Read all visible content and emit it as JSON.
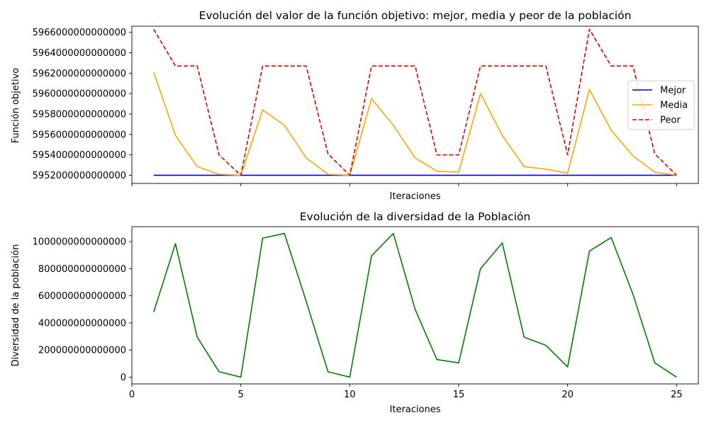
{
  "chart_data": [
    {
      "type": "line",
      "title": "Evolución del valor de la función objetivo: mejor, media y peor de la población",
      "xlabel": "Iteraciones",
      "ylabel": "Función objetivo",
      "x": [
        1,
        2,
        3,
        4,
        5,
        6,
        7,
        8,
        9,
        10,
        11,
        12,
        13,
        14,
        15,
        16,
        17,
        18,
        19,
        20,
        21,
        22,
        23,
        24,
        25
      ],
      "xlim": [
        0,
        26
      ],
      "xticks": [
        0,
        5,
        10,
        15,
        20,
        25
      ],
      "xtick_labels_visible": false,
      "ylim": [
        5951200000000000,
        5966600000000000
      ],
      "yticks": [
        5952000000000000,
        5954000000000000,
        5956000000000000,
        5958000000000000,
        5960000000000000,
        5962000000000000,
        5964000000000000,
        5966000000000000
      ],
      "ytick_labels": [
        "5952000000000000",
        "5954000000000000",
        "5956000000000000",
        "5958000000000000",
        "5960000000000000",
        "5962000000000000",
        "5964000000000000",
        "5966000000000000"
      ],
      "grid": false,
      "legend_position": "right",
      "series": [
        {
          "name": "Mejor",
          "color": "#0000cc",
          "style": "solid",
          "values": [
            5952000000000000,
            5952000000000000,
            5952000000000000,
            5952000000000000,
            5952000000000000,
            5952000000000000,
            5952000000000000,
            5952000000000000,
            5952000000000000,
            5952000000000000,
            5952000000000000,
            5952000000000000,
            5952000000000000,
            5952000000000000,
            5952000000000000,
            5952000000000000,
            5952000000000000,
            5952000000000000,
            5952000000000000,
            5952000000000000,
            5952000000000000,
            5952000000000000,
            5952000000000000,
            5952000000000000,
            5952000000000000
          ]
        },
        {
          "name": "Media",
          "color": "#ffa500",
          "style": "solid",
          "values": [
            5962100000000000,
            5955900000000000,
            5952850000000000,
            5952100000000000,
            5952000000000000,
            5958400000000000,
            5956900000000000,
            5953700000000000,
            5952100000000000,
            5952000000000000,
            5959500000000000,
            5956900000000000,
            5953700000000000,
            5952400000000000,
            5952300000000000,
            5960000000000000,
            5955900000000000,
            5952850000000000,
            5952600000000000,
            5952200000000000,
            5960400000000000,
            5956400000000000,
            5953900000000000,
            5952300000000000,
            5952000000000000
          ]
        },
        {
          "name": "Peor",
          "color": "#e00000",
          "style": "dashed",
          "values": [
            5966300000000000,
            5962700000000000,
            5962700000000000,
            5954000000000000,
            5952000000000000,
            5962700000000000,
            5962700000000000,
            5962700000000000,
            5954100000000000,
            5952000000000000,
            5962700000000000,
            5962700000000000,
            5962700000000000,
            5954000000000000,
            5954000000000000,
            5962700000000000,
            5962700000000000,
            5962700000000000,
            5962700000000000,
            5954000000000000,
            5966300000000000,
            5962700000000000,
            5962700000000000,
            5954100000000000,
            5952000000000000
          ]
        }
      ]
    },
    {
      "type": "line",
      "title": "Evolución de la diversidad de la Población",
      "xlabel": "Iteraciones",
      "ylabel": "Diversidad de la población",
      "x": [
        1,
        2,
        3,
        4,
        5,
        6,
        7,
        8,
        9,
        10,
        11,
        12,
        13,
        14,
        15,
        16,
        17,
        18,
        19,
        20,
        21,
        22,
        23,
        24,
        25
      ],
      "xlim": [
        0,
        26
      ],
      "xticks": [
        0,
        5,
        10,
        15,
        20,
        25
      ],
      "xtick_labels": [
        "0",
        "5",
        "10",
        "15",
        "20",
        "25"
      ],
      "ylim": [
        -50000000000000,
        1110000000000000
      ],
      "yticks": [
        0,
        200000000000000,
        400000000000000,
        600000000000000,
        800000000000000,
        1000000000000000
      ],
      "ytick_labels": [
        "0",
        "200000000000000",
        "400000000000000",
        "600000000000000",
        "800000000000000",
        "1000000000000000"
      ],
      "grid": false,
      "series": [
        {
          "color": "#008000",
          "style": "solid",
          "values": [
            480000000000000,
            985000000000000,
            295000000000000,
            40000000000000,
            0,
            1025000000000000,
            1060000000000000,
            560000000000000,
            40000000000000,
            0,
            895000000000000,
            1060000000000000,
            500000000000000,
            130000000000000,
            105000000000000,
            800000000000000,
            990000000000000,
            295000000000000,
            235000000000000,
            75000000000000,
            930000000000000,
            1030000000000000,
            610000000000000,
            105000000000000,
            0
          ]
        }
      ]
    }
  ]
}
